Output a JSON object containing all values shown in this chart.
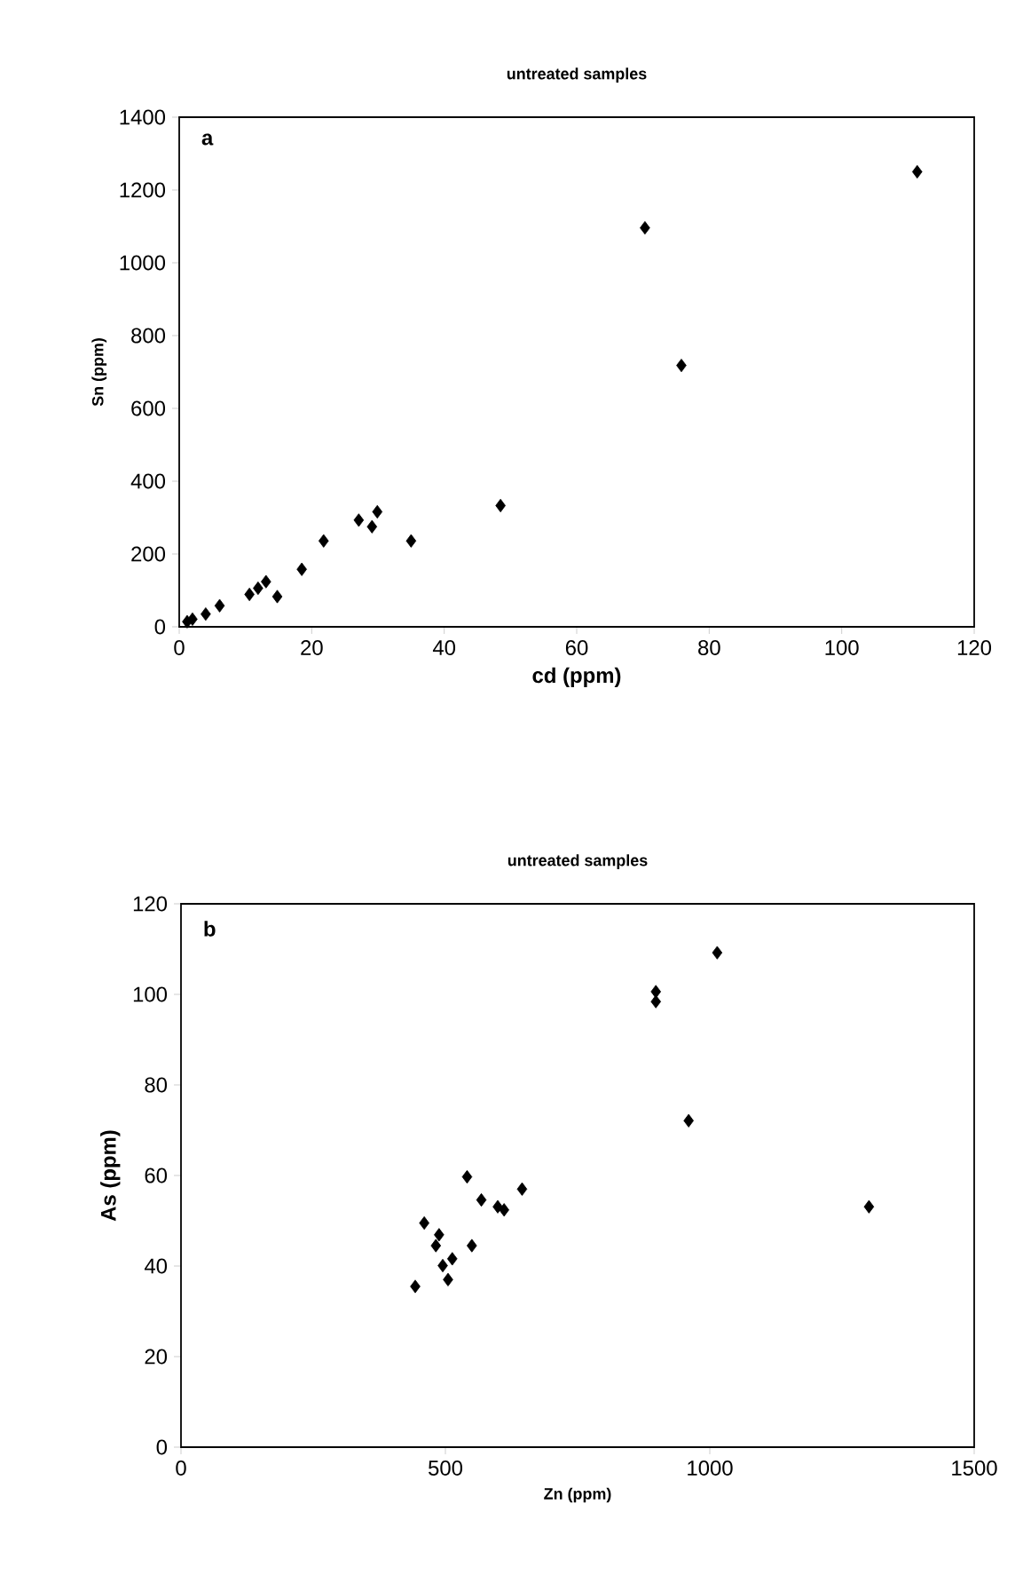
{
  "chart_data": [
    {
      "type": "scatter",
      "title": "untreated samples",
      "xlabel": "cd (ppm)",
      "ylabel": "Sn (ppm)",
      "annotations": [
        "a"
      ],
      "marker": "diamond",
      "xlim": [
        0,
        120
      ],
      "xticks": [
        0,
        20,
        40,
        60,
        80,
        100,
        120
      ],
      "ylim": [
        0,
        1400
      ],
      "yticks": [
        0,
        200,
        400,
        600,
        800,
        1000,
        1200,
        1400
      ],
      "series": [
        {
          "color": "#000000",
          "x": [
            111.4,
            70.3,
            75.8,
            48.5,
            35,
            29.9,
            29.1,
            27.1,
            21.8,
            18.5,
            14.8,
            13.1,
            11.9,
            10.6,
            6.1,
            4,
            2,
            1.2
          ],
          "values": [
            1250,
            1096,
            718,
            333,
            236,
            316,
            275,
            293,
            236,
            158,
            83,
            124,
            106,
            89,
            58,
            35,
            21,
            14
          ]
        }
      ]
    },
    {
      "type": "scatter",
      "title": "untreated samples",
      "xlabel": "Zn (ppm)",
      "ylabel": "As (ppm)",
      "annotations": [
        "b"
      ],
      "marker": "diamond",
      "xlim": [
        0,
        1500
      ],
      "xticks": [
        0,
        500,
        1000,
        1500
      ],
      "ylim": [
        0,
        120
      ],
      "yticks": [
        0,
        20,
        40,
        60,
        80,
        100,
        120
      ],
      "series": [
        {
          "color": "#000000",
          "x": [
            1014,
            898,
            898,
            960,
            1301,
            541,
            645,
            568,
            599,
            611,
            460,
            488,
            482,
            550,
            513,
            495,
            505,
            443
          ],
          "values": [
            109.2,
            100.6,
            98.4,
            72.1,
            53.1,
            59.7,
            57,
            54.6,
            53.1,
            52.4,
            49.5,
            46.9,
            44.5,
            44.5,
            41.6,
            40.1,
            37,
            35.5
          ]
        }
      ]
    }
  ]
}
